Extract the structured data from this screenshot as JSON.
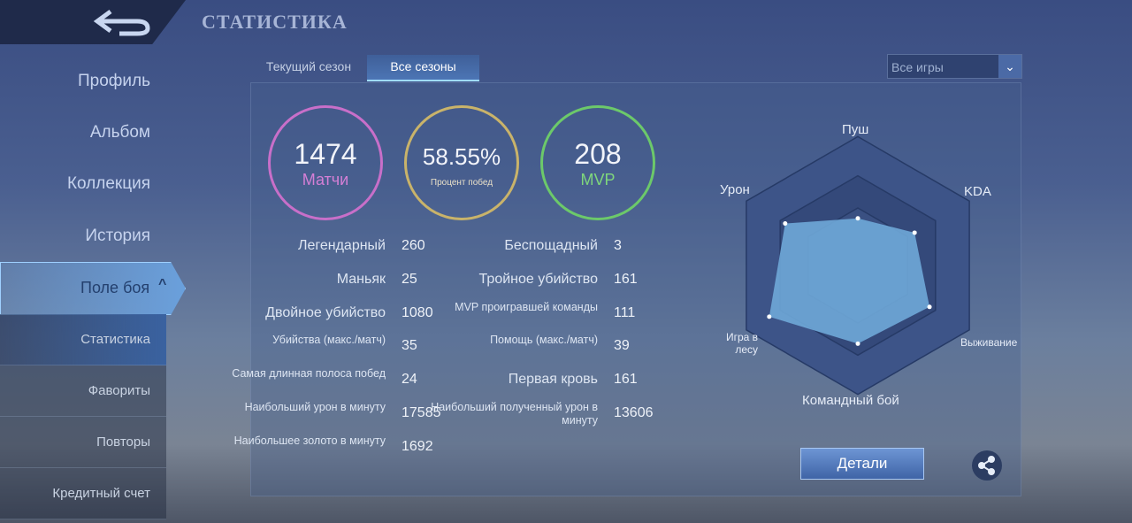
{
  "header": {
    "title": "СТАТИСТИКА",
    "back_icon": "back-arrow-icon"
  },
  "sidebar": {
    "items": [
      {
        "label": "Профиль"
      },
      {
        "label": "Альбом"
      },
      {
        "label": "Коллекция"
      },
      {
        "label": "История"
      },
      {
        "label": "Поле боя"
      }
    ],
    "subitems": [
      {
        "label": "Статистика"
      },
      {
        "label": "Фавориты"
      },
      {
        "label": "Повторы"
      },
      {
        "label": "Кредитный счет"
      }
    ]
  },
  "tabs": [
    {
      "label": "Текущий сезон"
    },
    {
      "label": "Все сезоны"
    }
  ],
  "filter": {
    "selected": "Все игры"
  },
  "summary": {
    "matches": {
      "value": "1474",
      "label": "Матчи",
      "color": "#c86fc9"
    },
    "winrate": {
      "value": "58.55%",
      "label": "Процент побед",
      "color": "#c9b36a"
    },
    "mvp": {
      "value": "208",
      "label": "MVP",
      "color": "#6cc96a"
    }
  },
  "stats_left": [
    {
      "label": "Легендарный",
      "value": "260"
    },
    {
      "label": "Маньяк",
      "value": "25"
    },
    {
      "label": "Двойное убийство",
      "value": "1080"
    },
    {
      "label": "Убийства (макс./матч)",
      "value": "35"
    },
    {
      "label": "Самая длинная полоса побед",
      "value": "24"
    },
    {
      "label": "Наибольший урон в минуту",
      "value": "17585"
    },
    {
      "label": "Наибольшее золото в минуту",
      "value": "1692"
    }
  ],
  "stats_right": [
    {
      "label": "Беспощадный",
      "value": "3"
    },
    {
      "label": "Тройное убийство",
      "value": "161"
    },
    {
      "label": "MVP проигравшей команды",
      "value": "111"
    },
    {
      "label": "Помощь (макс./матч)",
      "value": "39"
    },
    {
      "label": "Первая кровь",
      "value": "161"
    },
    {
      "label": "Наибольший полученный урон в минуту",
      "value": "13606"
    }
  ],
  "chart_data": {
    "type": "radar",
    "axes": [
      "Пуш",
      "KDA",
      "Выживание",
      "Командный бой",
      "Игра в лесу",
      "Урон"
    ],
    "values": [
      0.41,
      0.57,
      0.72,
      0.68,
      0.89,
      0.73
    ],
    "range": [
      0,
      1
    ],
    "fill_color": "#6fa9d8"
  },
  "buttons": {
    "details": "Детали",
    "share_icon": "share-icon"
  }
}
